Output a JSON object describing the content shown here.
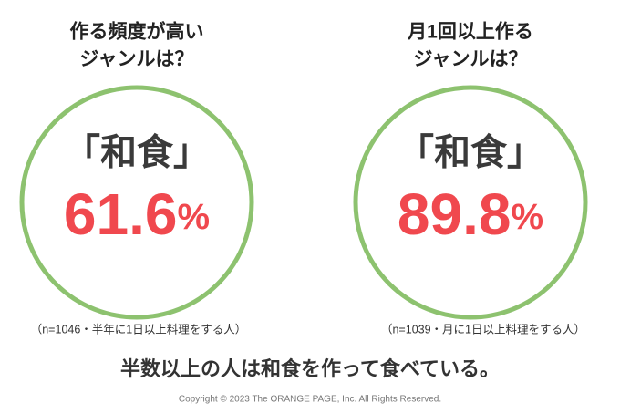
{
  "panels": [
    {
      "heading": [
        "作る頻度が高い",
        "ジャンルは？"
      ],
      "genre": "「和食」",
      "value": "61.6",
      "unit": "%",
      "note": "（n=1046・半年に1日以上料理をする人）"
    },
    {
      "heading": [
        "月1回以上作る",
        "ジャンルは？"
      ],
      "genre": "「和食」",
      "value": "89.8",
      "unit": "%",
      "note": "（n=1039・月に1日以上料理をする人）"
    }
  ],
  "summary": "半数以上の人は和食を作って食べている。",
  "copyright": "Copyright © 2023 The ORANGE PAGE, Inc. All Rights Reserved."
}
